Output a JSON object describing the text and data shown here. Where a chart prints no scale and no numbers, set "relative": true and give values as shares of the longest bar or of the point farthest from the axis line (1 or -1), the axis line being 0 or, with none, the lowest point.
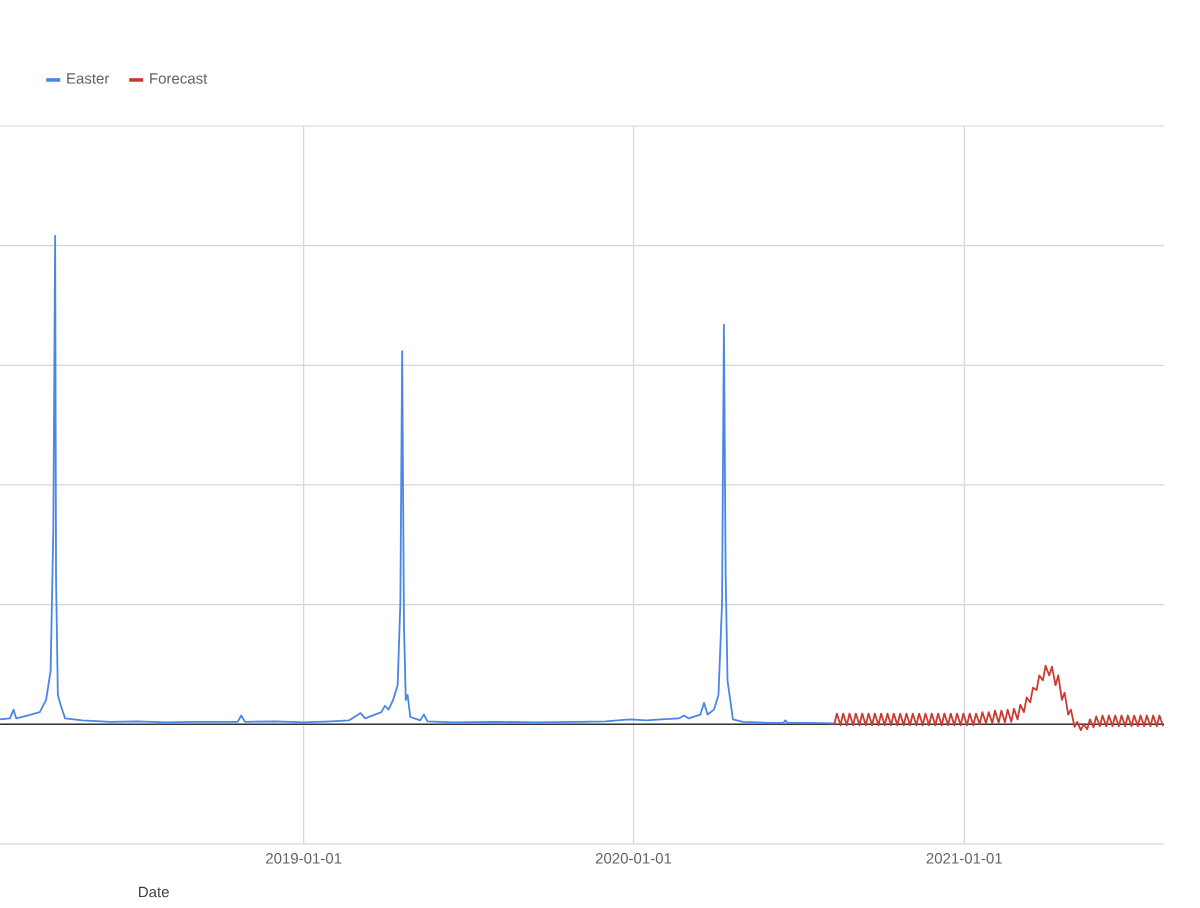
{
  "chart_data": {
    "type": "line",
    "relative": true,
    "xlabel": "Date",
    "legend": "top left",
    "grid": true,
    "tick_labels": "x",
    "xlim": [
      "2018-01-30",
      "2021-08-10"
    ],
    "xticks": [
      "2019-01-01",
      "2020-01-01",
      "2021-01-01"
    ],
    "series": [
      {
        "name": "Easter",
        "color": "#4a86e8",
        "x": [
          "2018-01-30",
          "2018-02-10",
          "2018-02-14",
          "2018-02-17",
          "2018-03-01",
          "2018-03-15",
          "2018-03-22",
          "2018-03-27",
          "2018-03-30",
          "2018-04-01",
          "2018-04-02",
          "2018-04-04",
          "2018-04-07",
          "2018-04-12",
          "2018-05-01",
          "2018-06-01",
          "2018-07-01",
          "2018-08-01",
          "2018-09-01",
          "2018-10-20",
          "2018-10-24",
          "2018-10-28",
          "2018-12-01",
          "2019-01-01",
          "2019-02-01",
          "2019-02-20",
          "2019-03-05",
          "2019-03-10",
          "2019-03-28",
          "2019-04-01",
          "2019-04-05",
          "2019-04-10",
          "2019-04-15",
          "2019-04-18",
          "2019-04-20",
          "2019-04-22",
          "2019-04-24",
          "2019-04-26",
          "2019-04-29",
          "2019-05-10",
          "2019-05-14",
          "2019-05-18",
          "2019-06-15",
          "2019-08-01",
          "2019-09-15",
          "2019-11-01",
          "2019-12-01",
          "2019-12-28",
          "2020-01-15",
          "2020-02-01",
          "2020-02-20",
          "2020-02-26",
          "2020-03-02",
          "2020-03-15",
          "2020-03-19",
          "2020-03-23",
          "2020-03-30",
          "2020-04-04",
          "2020-04-08",
          "2020-04-10",
          "2020-04-12",
          "2020-04-14",
          "2020-04-17",
          "2020-04-20",
          "2020-05-01",
          "2020-06-01",
          "2020-06-15",
          "2020-06-17",
          "2020-06-19",
          "2020-07-15",
          "2020-08-10"
        ],
        "values": [
          0.01,
          0.012,
          0.03,
          0.012,
          0.018,
          0.025,
          0.05,
          0.11,
          0.4,
          1,
          0.3,
          0.06,
          0.04,
          0.012,
          0.008,
          0.005,
          0.006,
          0.004,
          0.005,
          0.005,
          0.018,
          0.005,
          0.006,
          0.004,
          0.006,
          0.008,
          0.023,
          0.012,
          0.025,
          0.038,
          0.03,
          0.05,
          0.08,
          0.25,
          0.764,
          0.2,
          0.05,
          0.06,
          0.015,
          0.008,
          0.02,
          0.006,
          0.004,
          0.005,
          0.004,
          0.005,
          0.006,
          0.01,
          0.008,
          0.01,
          0.012,
          0.018,
          0.012,
          0.02,
          0.044,
          0.02,
          0.03,
          0.06,
          0.25,
          0.818,
          0.3,
          0.09,
          0.05,
          0.01,
          0.005,
          0.003,
          0.003,
          0.008,
          0.003,
          0.003,
          0.002
        ]
      },
      {
        "name": "Forecast",
        "color": "#cc3b33",
        "x": [
          "2020-08-10",
          "2020-08-13",
          "2020-08-17",
          "2020-08-20",
          "2020-08-24",
          "2020-08-27",
          "2020-08-31",
          "2020-09-03",
          "2020-09-07",
          "2020-09-10",
          "2020-09-14",
          "2020-09-17",
          "2020-09-21",
          "2020-09-24",
          "2020-09-28",
          "2020-10-01",
          "2020-10-05",
          "2020-10-08",
          "2020-10-12",
          "2020-10-15",
          "2020-10-19",
          "2020-10-22",
          "2020-10-26",
          "2020-10-29",
          "2020-11-02",
          "2020-11-05",
          "2020-11-09",
          "2020-11-12",
          "2020-11-16",
          "2020-11-19",
          "2020-11-23",
          "2020-11-26",
          "2020-11-30",
          "2020-12-03",
          "2020-12-07",
          "2020-12-10",
          "2020-12-14",
          "2020-12-17",
          "2020-12-21",
          "2020-12-24",
          "2020-12-28",
          "2020-12-31",
          "2021-01-04",
          "2021-01-07",
          "2021-01-11",
          "2021-01-14",
          "2021-01-18",
          "2021-01-21",
          "2021-01-25",
          "2021-01-28",
          "2021-02-01",
          "2021-02-04",
          "2021-02-08",
          "2021-02-11",
          "2021-02-15",
          "2021-02-18",
          "2021-02-22",
          "2021-02-25",
          "2021-03-01",
          "2021-03-04",
          "2021-03-08",
          "2021-03-11",
          "2021-03-15",
          "2021-03-18",
          "2021-03-22",
          "2021-03-25",
          "2021-03-29",
          "2021-04-01",
          "2021-04-05",
          "2021-04-08",
          "2021-04-12",
          "2021-04-15",
          "2021-04-19",
          "2021-04-22",
          "2021-04-26",
          "2021-04-29",
          "2021-05-03",
          "2021-05-06",
          "2021-05-10",
          "2021-05-13",
          "2021-05-17",
          "2021-05-20",
          "2021-05-24",
          "2021-05-27",
          "2021-05-31",
          "2021-06-03",
          "2021-06-07",
          "2021-06-10",
          "2021-06-14",
          "2021-06-17",
          "2021-06-21",
          "2021-06-24",
          "2021-06-28",
          "2021-07-01",
          "2021-07-05",
          "2021-07-08",
          "2021-07-12",
          "2021-07-15",
          "2021-07-19",
          "2021-07-22",
          "2021-07-26",
          "2021-07-29",
          "2021-08-02",
          "2021-08-05",
          "2021-08-09"
        ],
        "values": [
          -0.002,
          0.022,
          -0.002,
          0.022,
          -0.002,
          0.022,
          -0.002,
          0.022,
          -0.002,
          0.022,
          -0.002,
          0.022,
          -0.002,
          0.022,
          -0.002,
          0.022,
          -0.002,
          0.022,
          -0.002,
          0.022,
          -0.002,
          0.022,
          -0.002,
          0.022,
          -0.002,
          0.022,
          -0.002,
          0.022,
          -0.002,
          0.022,
          -0.002,
          0.022,
          -0.002,
          0.022,
          -0.002,
          0.022,
          -0.002,
          0.022,
          -0.002,
          0.022,
          -0.002,
          0.022,
          -0.002,
          0.022,
          -0.002,
          0.022,
          0.0,
          0.025,
          0.002,
          0.025,
          0.002,
          0.028,
          0.003,
          0.028,
          0.004,
          0.03,
          0.005,
          0.032,
          0.01,
          0.04,
          0.025,
          0.055,
          0.045,
          0.075,
          0.07,
          0.1,
          0.09,
          0.12,
          0.1,
          0.118,
          0.08,
          0.1,
          0.05,
          0.065,
          0.02,
          0.03,
          -0.005,
          0.005,
          -0.012,
          0.0,
          -0.01,
          0.01,
          -0.006,
          0.016,
          -0.004,
          0.018,
          -0.004,
          0.018,
          -0.004,
          0.018,
          -0.004,
          0.018,
          -0.004,
          0.018,
          -0.004,
          0.018,
          -0.004,
          0.018,
          -0.004,
          0.018,
          -0.004,
          0.018,
          -0.004,
          0.018,
          -0.004
        ]
      }
    ]
  }
}
